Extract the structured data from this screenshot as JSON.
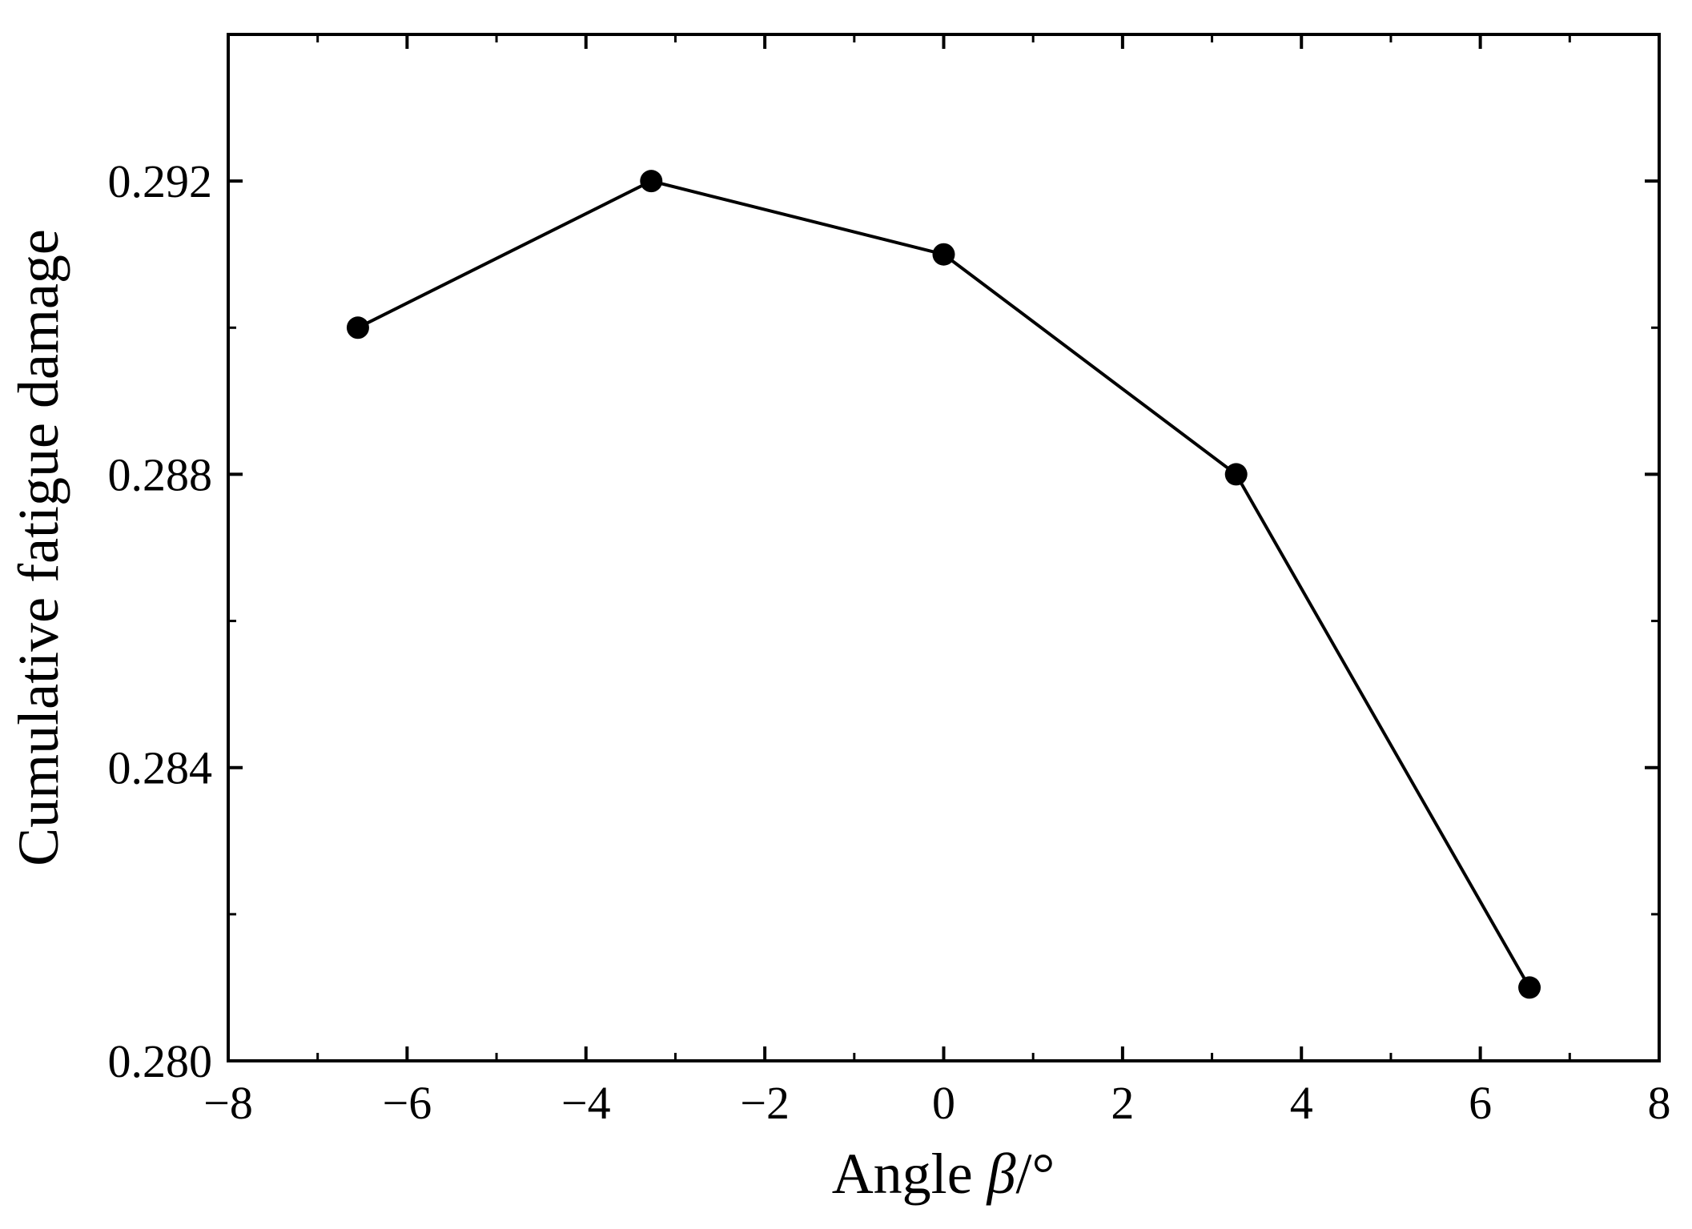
{
  "chart_data": {
    "type": "line",
    "xlabel_prefix": "Angle ",
    "xlabel_symbol": "β",
    "xlabel_suffix": "/°",
    "ylabel": "Cumulative fatigue damage",
    "xlim": [
      -8,
      8
    ],
    "ylim": [
      0.28,
      0.294
    ],
    "x_ticks": [
      -8,
      -6,
      -4,
      -2,
      0,
      2,
      4,
      6,
      8
    ],
    "x_tick_labels": [
      "−8",
      "−6",
      "−4",
      "−2",
      "0",
      "2",
      "4",
      "6",
      "8"
    ],
    "y_ticks": [
      0.28,
      0.284,
      0.288,
      0.292
    ],
    "y_tick_labels": [
      "0.280",
      "0.284",
      "0.288",
      "0.292"
    ],
    "grid": false,
    "series": [
      {
        "x": [
          -6.55,
          -3.27,
          0,
          3.27,
          6.55
        ],
        "y": [
          0.29,
          0.292,
          0.291,
          0.288,
          0.281
        ]
      }
    ],
    "colors": {
      "line": "#000000",
      "marker": "#000000"
    }
  }
}
